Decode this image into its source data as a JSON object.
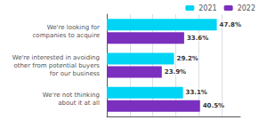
{
  "chart_data": {
    "type": "bar",
    "orientation": "horizontal",
    "categories": [
      "We're looking for\ncompanies to acquire",
      "We're interested in avoiding\nother from potential buyers\nfor our business",
      "We're not thinking\nabout it at all"
    ],
    "series": [
      {
        "name": "2021",
        "color": "#00d4f5",
        "values": [
          47.8,
          29.2,
          33.1
        ],
        "value_labels": [
          "47.8%",
          "29.2%",
          "33.1%"
        ]
      },
      {
        "name": "2022",
        "color": "#7b2fbe",
        "values": [
          33.6,
          23.9,
          40.5
        ],
        "value_labels": [
          "33.6%",
          "23.9%",
          "40.5%"
        ]
      }
    ],
    "xlim": [
      0,
      58
    ],
    "xticks": [
      10,
      20,
      30,
      40,
      50
    ],
    "grid": true,
    "tick_labels": "y",
    "legend": "upper right",
    "data_labels": true
  }
}
